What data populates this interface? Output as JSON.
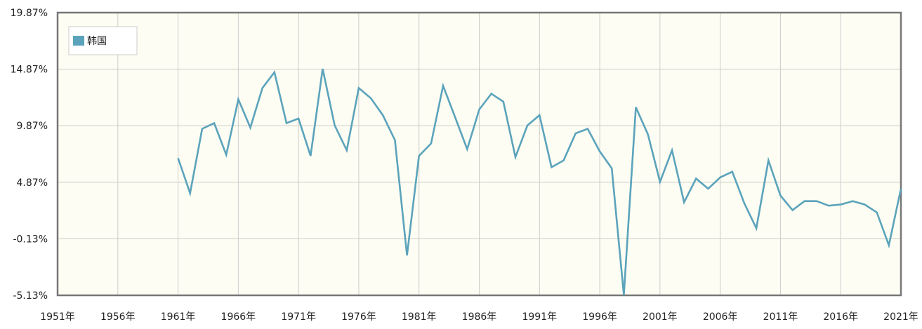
{
  "chart_data": {
    "type": "line",
    "title": "",
    "xlabel": "",
    "ylabel": "",
    "xlim": [
      1951,
      2021
    ],
    "ylim": [
      -5.13,
      19.87
    ],
    "x_ticks": [
      1951,
      1956,
      1961,
      1966,
      1971,
      1976,
      1981,
      1986,
      1991,
      1996,
      2001,
      2006,
      2011,
      2016,
      2021
    ],
    "x_tick_labels": [
      "1951年",
      "1956年",
      "1961年",
      "1966年",
      "1971年",
      "1976年",
      "1981年",
      "1986年",
      "1991年",
      "1996年",
      "2001年",
      "2006年",
      "2011年",
      "2016年",
      "2021年"
    ],
    "y_ticks": [
      -5.13,
      -0.13,
      4.87,
      9.87,
      14.87,
      19.87
    ],
    "y_tick_labels": [
      "-5.13%",
      "-0.13%",
      "4.87%",
      "9.87%",
      "14.87%",
      "19.87%"
    ],
    "grid": true,
    "legend_position": "top-left",
    "colors": {
      "series": "#5ba3bb",
      "plot_bg": "#fdfdf3",
      "grid": "#cccccc",
      "frame": "#777777"
    },
    "series": [
      {
        "name": "韩国",
        "x": [
          1961,
          1962,
          1963,
          1964,
          1965,
          1966,
          1967,
          1968,
          1969,
          1970,
          1971,
          1972,
          1973,
          1974,
          1975,
          1976,
          1977,
          1978,
          1979,
          1980,
          1981,
          1982,
          1983,
          1984,
          1985,
          1986,
          1987,
          1988,
          1989,
          1990,
          1991,
          1992,
          1993,
          1994,
          1995,
          1996,
          1997,
          1998,
          1999,
          2000,
          2001,
          2002,
          2003,
          2004,
          2005,
          2006,
          2007,
          2008,
          2009,
          2010,
          2011,
          2012,
          2013,
          2014,
          2015,
          2016,
          2017,
          2018,
          2019,
          2020,
          2021
        ],
        "values": [
          7.0,
          3.9,
          9.6,
          10.1,
          7.3,
          12.2,
          9.7,
          13.2,
          14.6,
          10.1,
          10.5,
          7.2,
          14.9,
          9.9,
          7.7,
          13.2,
          12.3,
          10.8,
          8.6,
          -1.6,
          7.2,
          8.3,
          13.4,
          10.6,
          7.8,
          11.3,
          12.7,
          12.0,
          7.1,
          9.9,
          10.8,
          6.2,
          6.8,
          9.2,
          9.6,
          7.6,
          6.1,
          -5.1,
          11.5,
          9.1,
          4.9,
          7.7,
          3.1,
          5.2,
          4.3,
          5.3,
          5.8,
          3.0,
          0.8,
          6.8,
          3.7,
          2.4,
          3.2,
          3.2,
          2.8,
          2.9,
          3.2,
          2.9,
          2.2,
          -0.7,
          4.3
        ]
      }
    ]
  }
}
